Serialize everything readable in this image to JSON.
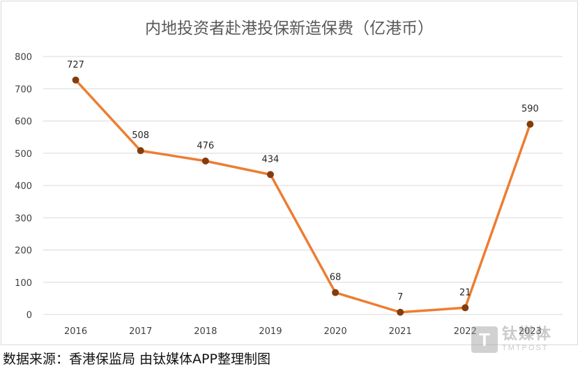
{
  "chart_data": {
    "type": "line",
    "title": "内地投资者赴港投保新造保费（亿港币）",
    "categories": [
      "2016",
      "2017",
      "2018",
      "2019",
      "2020",
      "2021",
      "2022",
      "2023"
    ],
    "values": [
      727,
      508,
      476,
      434,
      68,
      7,
      21,
      590
    ],
    "data_labels": [
      "727",
      "508",
      "476",
      "434",
      "68",
      "7",
      "21",
      "590"
    ],
    "yticks": [
      "0",
      "100",
      "200",
      "300",
      "400",
      "500",
      "600",
      "700",
      "800"
    ],
    "ylim": [
      0,
      800
    ],
    "xlabel": "",
    "ylabel": "",
    "grid": true,
    "line_color": "#ed7d31",
    "marker_color": "#843c0c"
  },
  "source_note": "数据来源：香港保监局 由钛媒体APP整理制图",
  "watermark": {
    "logo_glyph": "T",
    "cn": "钛媒体",
    "en": "TMTPOST"
  }
}
